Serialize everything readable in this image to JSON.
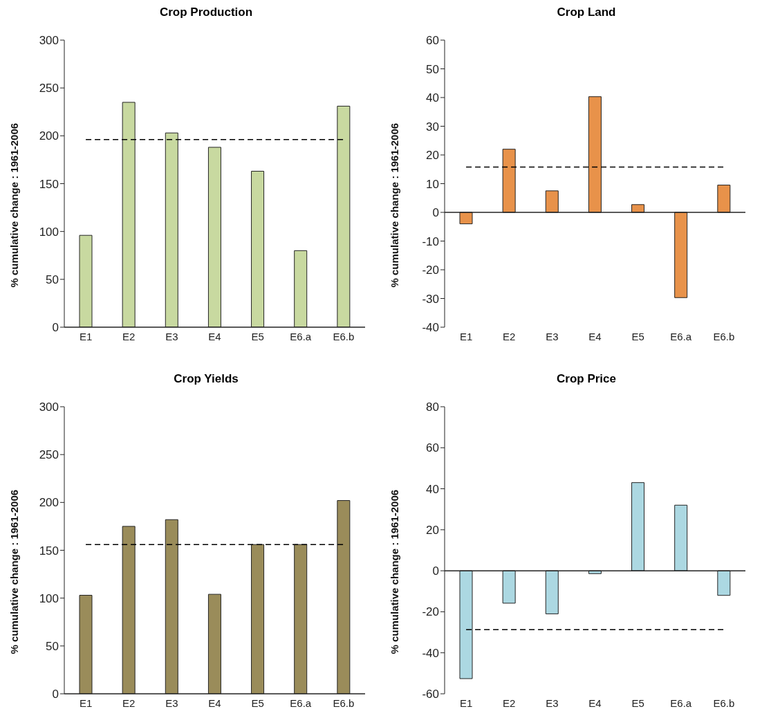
{
  "chart_data": [
    {
      "type": "bar",
      "title": "Crop Production",
      "ylabel": "% cumulative change : 1961-2006",
      "categories": [
        "E1",
        "E2",
        "E3",
        "E4",
        "E5",
        "E6.a",
        "E6.b"
      ],
      "values": [
        96,
        235,
        203,
        188,
        163,
        80,
        231
      ],
      "color": "#c8d9a0",
      "ylim": [
        0,
        300
      ],
      "yticks": [
        0,
        50,
        100,
        150,
        200,
        250,
        300
      ],
      "grid": false,
      "legend": false,
      "ref_lines": [
        {
          "axis": "y",
          "value": 196,
          "color": "#000000",
          "line_style": "dashed"
        }
      ]
    },
    {
      "type": "bar",
      "title": "Crop Land",
      "ylabel": "% cumulative change : 1961-2006",
      "categories": [
        "E1",
        "E2",
        "E3",
        "E4",
        "E5",
        "E6.a",
        "E6.b"
      ],
      "values": [
        -4,
        22,
        7.5,
        40.3,
        2.7,
        -29.7,
        9.5
      ],
      "color": "#e8924a",
      "ylim": [
        -40,
        60
      ],
      "yticks": [
        -40,
        -30,
        -20,
        -10,
        0,
        10,
        20,
        30,
        40,
        50,
        60
      ],
      "grid": false,
      "legend": false,
      "ref_lines": [
        {
          "axis": "y",
          "value": 15.8,
          "color": "#000000",
          "line_style": "dashed"
        },
        {
          "axis": "y",
          "value": 0,
          "color": "#222222",
          "line_style": "solid"
        }
      ]
    },
    {
      "type": "bar",
      "title": "Crop Yields",
      "ylabel": "% cumulative change : 1961-2006",
      "categories": [
        "E1",
        "E2",
        "E3",
        "E4",
        "E5",
        "E6.a",
        "E6.b"
      ],
      "values": [
        103,
        175,
        182,
        104,
        156,
        156,
        202
      ],
      "color": "#9a8c5a",
      "ylim": [
        0,
        300
      ],
      "yticks": [
        0,
        50,
        100,
        150,
        200,
        250,
        300
      ],
      "grid": false,
      "legend": false,
      "ref_lines": [
        {
          "axis": "y",
          "value": 156,
          "color": "#000000",
          "line_style": "dashed"
        }
      ]
    },
    {
      "type": "bar",
      "title": "Crop Price",
      "ylabel": "% cumulative change : 1961-2006",
      "categories": [
        "E1",
        "E2",
        "E3",
        "E4",
        "E5",
        "E6.a",
        "E6.b"
      ],
      "values": [
        -52.6,
        -15.8,
        -21,
        -1.4,
        43,
        32,
        -12
      ],
      "color": "#acd8e2",
      "ylim": [
        -60,
        80
      ],
      "yticks": [
        -60,
        -40,
        -20,
        0,
        20,
        40,
        60,
        80
      ],
      "grid": false,
      "legend": false,
      "ref_lines": [
        {
          "axis": "y",
          "value": -28.7,
          "color": "#000000",
          "line_style": "dashed"
        },
        {
          "axis": "y",
          "value": 0,
          "color": "#222222",
          "line_style": "solid"
        }
      ]
    }
  ]
}
